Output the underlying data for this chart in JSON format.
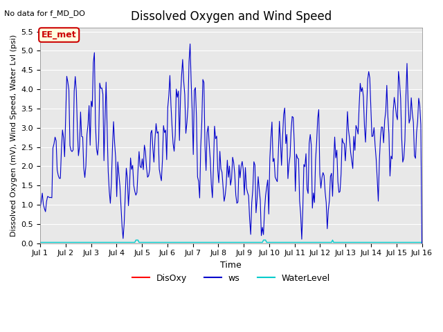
{
  "title": "Dissolved Oxygen and Wind Speed",
  "subtitle": "No data for f_MD_DO",
  "xlabel": "Time",
  "ylabel": "Dissolved Oxygen (mV), Wind Speed, Water Lvl (psi)",
  "ylim": [
    0.0,
    5.6
  ],
  "yticks": [
    0.0,
    0.5,
    1.0,
    1.5,
    2.0,
    2.5,
    3.0,
    3.5,
    4.0,
    4.5,
    5.0,
    5.5
  ],
  "legend_labels": [
    "DisOxy",
    "ws",
    "WaterLevel"
  ],
  "legend_colors": [
    "#ff0000",
    "#0000cc",
    "#00ffff"
  ],
  "ws_color": "#0000cc",
  "water_color": "#00cccc",
  "annotation_text": "EE_met",
  "annotation_color": "#cc0000",
  "bg_color": "#e8e8e8",
  "x_start": 1,
  "x_end": 16,
  "x_ticks": [
    1,
    2,
    3,
    4,
    5,
    6,
    7,
    8,
    9,
    10,
    11,
    12,
    13,
    14,
    15,
    16
  ],
  "x_tick_labels": [
    "Jul 1",
    "Jul 2",
    "Jul 3",
    "Jul 4",
    "Jul 5",
    "Jul 6",
    "Jul 7",
    "Jul 8",
    "Jul 9",
    "Jul 10",
    "Jul 11",
    "Jul 12",
    "Jul 13",
    "Jul 14",
    "Jul 15",
    "Jul 16"
  ]
}
